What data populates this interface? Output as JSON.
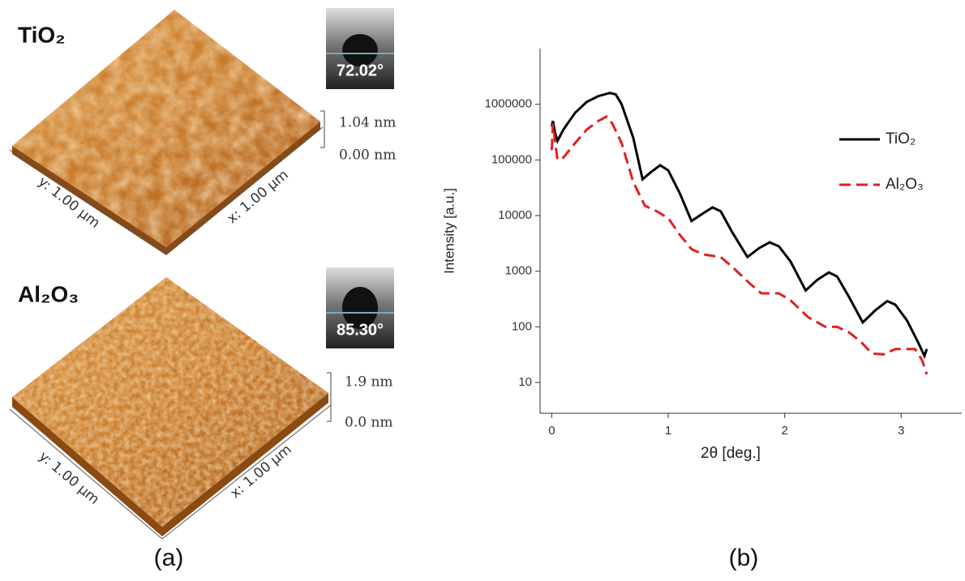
{
  "afm": [
    {
      "material": "TiO₂",
      "contact_angle": "72.02°",
      "z_max": "1.04 nm",
      "z_min": "0.00 nm",
      "y_axis": "y: 1.00 µm",
      "x_axis": "x: 1.00 µm"
    },
    {
      "material": "Al₂O₃",
      "contact_angle": "85.30°",
      "z_max": "1.9 nm",
      "z_min": "0.0 nm",
      "y_axis": "y: 1.00 µm",
      "x_axis": "x: 1.00 µm"
    }
  ],
  "panel_labels": [
    "(a)",
    "(b)"
  ],
  "chart_data": {
    "type": "line",
    "x_label": "2θ [deg.]",
    "y_label": "Intensity [a.u.]",
    "xlim": [
      -0.1,
      3.52
    ],
    "ylim": [
      2.8,
      10000000
    ],
    "y_scale": "log",
    "xticks": [
      0,
      1,
      2,
      3
    ],
    "yticks": [
      10,
      100,
      1000,
      10000,
      100000,
      1000000
    ],
    "legend": "upper right",
    "series": [
      {
        "name": "TiO₂",
        "color": "#000000",
        "style": "solid",
        "x": [
          0.0,
          0.01,
          0.03,
          0.05,
          0.1,
          0.2,
          0.3,
          0.4,
          0.5,
          0.55,
          0.6,
          0.7,
          0.78,
          0.85,
          0.93,
          1.0,
          1.1,
          1.2,
          1.3,
          1.38,
          1.45,
          1.55,
          1.68,
          1.78,
          1.87,
          1.95,
          2.05,
          2.18,
          2.28,
          2.38,
          2.45,
          2.55,
          2.67,
          2.78,
          2.88,
          2.95,
          3.05,
          3.15,
          3.2,
          3.22
        ],
        "values": [
          400000,
          500000,
          300000,
          220000,
          350000,
          700000,
          1100000,
          1400000,
          1600000,
          1500000,
          1000000,
          250000,
          45000,
          60000,
          80000,
          65000,
          25000,
          8000,
          11000,
          14000,
          12000,
          5000,
          1800,
          2600,
          3300,
          2800,
          1500,
          450,
          700,
          950,
          800,
          350,
          120,
          200,
          290,
          250,
          130,
          50,
          30,
          40
        ]
      },
      {
        "name": "Al₂O₃",
        "color": "#e02020",
        "style": "dashed",
        "x": [
          0.0,
          0.01,
          0.03,
          0.05,
          0.1,
          0.2,
          0.3,
          0.4,
          0.47,
          0.52,
          0.6,
          0.7,
          0.8,
          0.9,
          1.0,
          1.1,
          1.2,
          1.3,
          1.45,
          1.55,
          1.7,
          1.8,
          1.95,
          2.05,
          2.2,
          2.35,
          2.45,
          2.55,
          2.65,
          2.75,
          2.85,
          2.95,
          3.05,
          3.12,
          3.18,
          3.22
        ],
        "values": [
          150000,
          450000,
          200000,
          100000,
          110000,
          200000,
          350000,
          500000,
          600000,
          450000,
          200000,
          40000,
          15000,
          12000,
          9000,
          4500,
          2500,
          2000,
          1800,
          1200,
          600,
          400,
          400,
          300,
          150,
          100,
          100,
          80,
          55,
          33,
          32,
          40,
          40,
          40,
          25,
          14
        ]
      }
    ]
  }
}
